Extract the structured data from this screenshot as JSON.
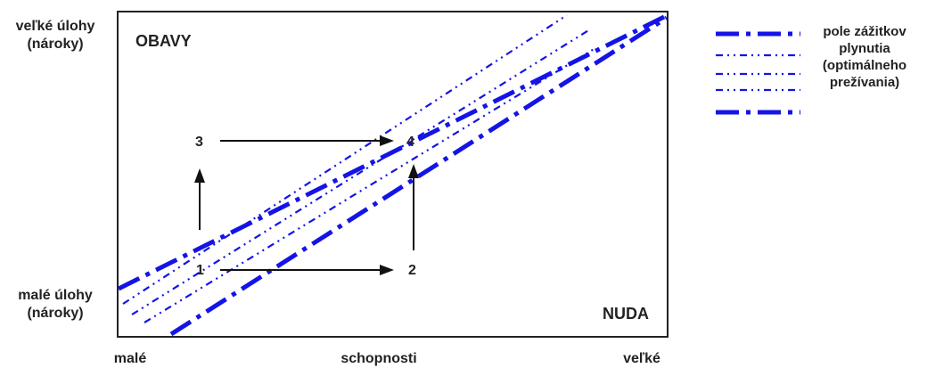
{
  "y_axis": {
    "top": [
      "veľké úlohy",
      "(nároky)"
    ],
    "bottom": [
      "malé úlohy",
      "(nároky)"
    ]
  },
  "x_axis": {
    "left": "malé",
    "middle": "schopnosti",
    "right": "veľké"
  },
  "regions": {
    "anxiety": "OBAVY",
    "boredom": "NUDA"
  },
  "points": [
    "1",
    "2",
    "3",
    "4"
  ],
  "legend": {
    "lines": [
      "pole zážitkov",
      "plynutia",
      "(optimálneho",
      "prežívania)"
    ]
  },
  "colors": {
    "band": "#1414e6",
    "frame": "#222222",
    "arrow": "#111111"
  }
}
